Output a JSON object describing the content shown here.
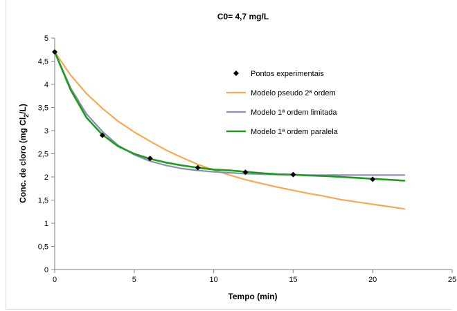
{
  "chart_data": {
    "type": "line",
    "title": "C0= 4,7 mg/L",
    "xlabel": "Tempo (min)",
    "ylabel": "Conc. de cloro (mg Cl",
    "ylabel_sub": "2",
    "ylabel_end": "/L)",
    "xlim": [
      0,
      25
    ],
    "ylim": [
      0,
      5
    ],
    "xticks": [
      0,
      5,
      10,
      15,
      20,
      25
    ],
    "xtick_labels": [
      "0",
      "5",
      "10",
      "15",
      "20",
      "25"
    ],
    "yticks": [
      0,
      0.5,
      1,
      1.5,
      2,
      2.5,
      3,
      3.5,
      4,
      4.5,
      5
    ],
    "ytick_labels": [
      "0",
      "0,5",
      "1",
      "1,5",
      "2",
      "2,5",
      "3",
      "3,5",
      "4",
      "4,5",
      "5"
    ],
    "grid": false,
    "legend_position": "top-right",
    "series": [
      {
        "name": "Pontos experimentais",
        "kind": "marker",
        "color": "#000000",
        "points": [
          [
            0,
            4.7
          ],
          [
            3,
            2.9
          ],
          [
            6,
            2.4
          ],
          [
            9,
            2.2
          ],
          [
            12,
            2.1
          ],
          [
            15,
            2.05
          ],
          [
            20,
            1.95
          ]
        ]
      },
      {
        "name": "Modelo pseudo 2ª ordem",
        "kind": "line",
        "color": "#F7A94F",
        "points": [
          [
            0,
            4.7
          ],
          [
            1,
            4.2
          ],
          [
            2,
            3.8
          ],
          [
            3,
            3.48
          ],
          [
            4,
            3.2
          ],
          [
            5,
            2.97
          ],
          [
            6,
            2.77
          ],
          [
            7,
            2.58
          ],
          [
            8,
            2.42
          ],
          [
            9,
            2.27
          ],
          [
            10,
            2.15
          ],
          [
            11,
            2.04
          ],
          [
            12,
            1.94
          ],
          [
            13,
            1.86
          ],
          [
            14,
            1.78
          ],
          [
            15,
            1.71
          ],
          [
            16,
            1.64
          ],
          [
            17,
            1.58
          ],
          [
            18,
            1.51
          ],
          [
            19,
            1.46
          ],
          [
            20,
            1.41
          ],
          [
            21,
            1.36
          ],
          [
            22,
            1.31
          ]
        ]
      },
      {
        "name": "Modelo 1ª ordem limitada",
        "kind": "line",
        "color": "#8A8FB5",
        "points": [
          [
            0,
            4.7
          ],
          [
            1,
            3.92
          ],
          [
            2,
            3.36
          ],
          [
            3,
            2.98
          ],
          [
            4,
            2.68
          ],
          [
            5,
            2.48
          ],
          [
            6,
            2.34
          ],
          [
            7,
            2.25
          ],
          [
            8,
            2.18
          ],
          [
            9,
            2.14
          ],
          [
            10,
            2.11
          ],
          [
            11,
            2.09
          ],
          [
            12,
            2.07
          ],
          [
            14,
            2.05
          ],
          [
            16,
            2.04
          ],
          [
            18,
            2.04
          ],
          [
            20,
            2.04
          ],
          [
            22,
            2.04
          ]
        ]
      },
      {
        "name": "Modelo 1ª ordem paralela",
        "kind": "line",
        "color": "#1F9A1F",
        "points": [
          [
            0,
            4.7
          ],
          [
            1,
            3.88
          ],
          [
            2,
            3.28
          ],
          [
            3,
            2.91
          ],
          [
            4,
            2.66
          ],
          [
            5,
            2.5
          ],
          [
            6,
            2.39
          ],
          [
            7,
            2.31
          ],
          [
            8,
            2.25
          ],
          [
            9,
            2.2
          ],
          [
            10,
            2.16
          ],
          [
            11,
            2.14
          ],
          [
            12,
            2.11
          ],
          [
            13,
            2.08
          ],
          [
            14,
            2.06
          ],
          [
            15,
            2.05
          ],
          [
            16,
            2.03
          ],
          [
            17,
            2.02
          ],
          [
            18,
            2.0
          ],
          [
            19,
            1.98
          ],
          [
            20,
            1.96
          ],
          [
            21,
            1.94
          ],
          [
            22,
            1.92
          ]
        ]
      }
    ]
  }
}
